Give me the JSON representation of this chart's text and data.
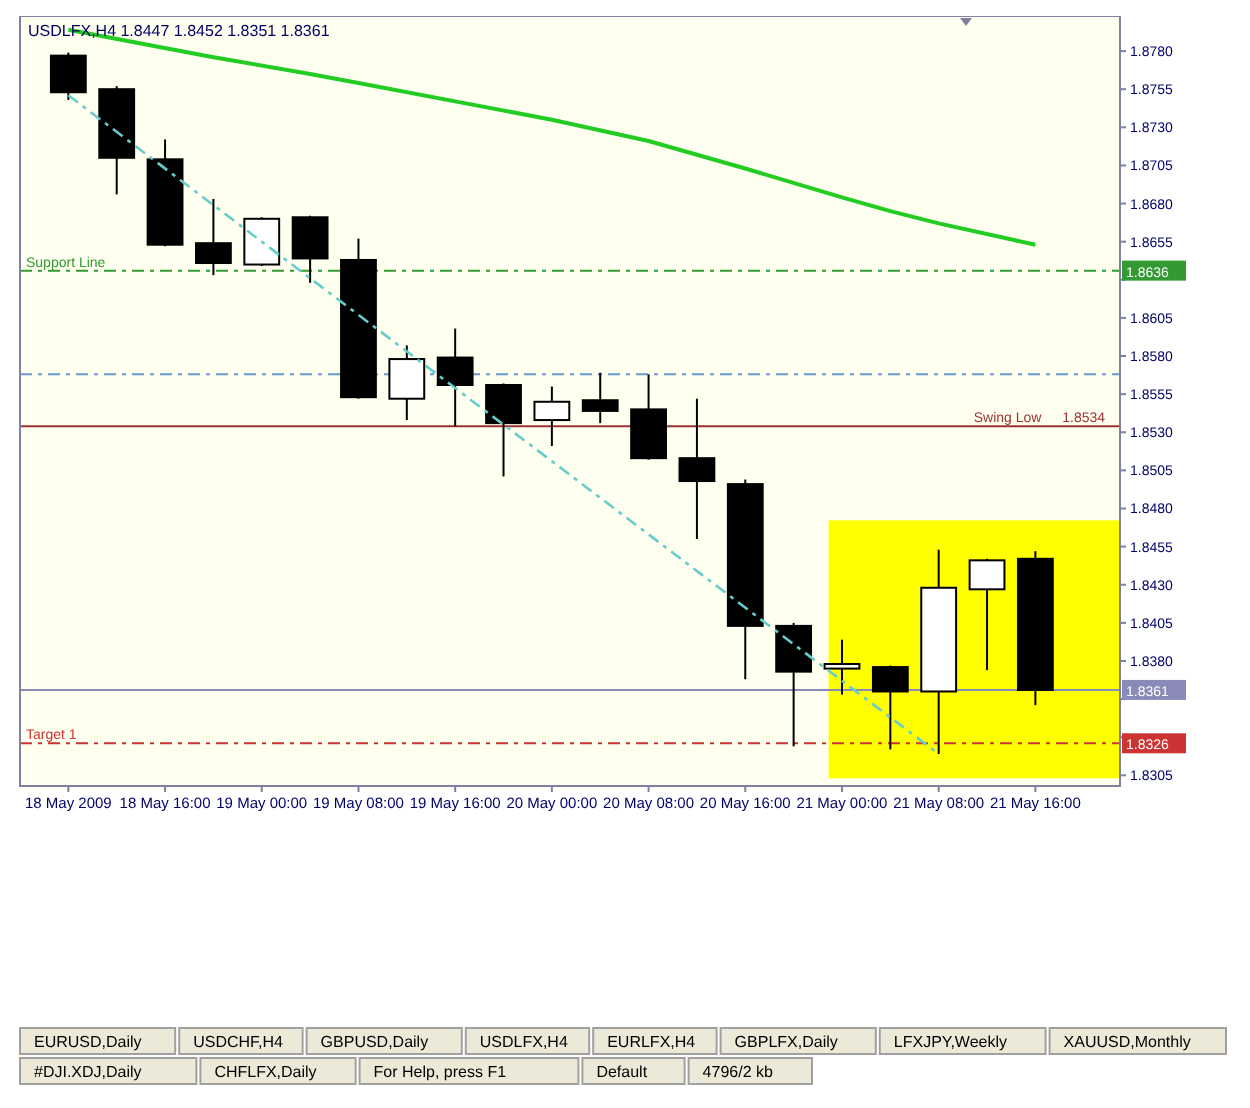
{
  "chart_data": {
    "type": "candlestick",
    "title": "USDLFX,H4 1.8447 1.8452 1.8351 1.8361",
    "x": [
      "2009-05-18T08:00",
      "2009-05-18T12:00",
      "2009-05-18T16:00",
      "2009-05-18T20:00",
      "2009-05-19T00:00",
      "2009-05-19T04:00",
      "2009-05-19T08:00",
      "2009-05-19T12:00",
      "2009-05-19T16:00",
      "2009-05-19T20:00",
      "2009-05-20T00:00",
      "2009-05-20T04:00",
      "2009-05-20T08:00",
      "2009-05-20T12:00",
      "2009-05-20T16:00",
      "2009-05-20T20:00",
      "2009-05-21T00:00",
      "2009-05-21T04:00",
      "2009-05-21T08:00",
      "2009-05-21T12:00",
      "2009-05-21T16:00"
    ],
    "ohlc": [
      [
        1.8777,
        1.8779,
        1.8748,
        1.8753
      ],
      [
        1.8755,
        1.8757,
        1.8686,
        1.871
      ],
      [
        1.8709,
        1.8722,
        1.8652,
        1.8653
      ],
      [
        1.8654,
        1.8683,
        1.8633,
        1.8641
      ],
      [
        1.864,
        1.8671,
        1.8639,
        1.867
      ],
      [
        1.8671,
        1.8672,
        1.8628,
        1.8644
      ],
      [
        1.8643,
        1.8657,
        1.8552,
        1.8553
      ],
      [
        1.8552,
        1.8587,
        1.8538,
        1.8578
      ],
      [
        1.8579,
        1.8598,
        1.8534,
        1.8561
      ],
      [
        1.8561,
        1.8562,
        1.8501,
        1.8536
      ],
      [
        1.8538,
        1.856,
        1.8521,
        1.855
      ],
      [
        1.8551,
        1.8569,
        1.8536,
        1.8544
      ],
      [
        1.8545,
        1.8568,
        1.8512,
        1.8513
      ],
      [
        1.8513,
        1.8552,
        1.846,
        1.8498
      ],
      [
        1.8496,
        1.8499,
        1.8368,
        1.8403
      ],
      [
        1.8403,
        1.8405,
        1.8324,
        1.8373
      ],
      [
        1.8375,
        1.8394,
        1.8358,
        1.8378
      ],
      [
        1.8376,
        1.8377,
        1.8322,
        1.836
      ],
      [
        1.836,
        1.8453,
        1.8319,
        1.8428
      ],
      [
        1.8427,
        1.8447,
        1.8374,
        1.8446
      ],
      [
        1.8447,
        1.8452,
        1.8351,
        1.8361
      ]
    ],
    "series": [
      {
        "type": "line",
        "color": "#22cc22",
        "line_style": "solid",
        "x": [
          "2009-05-18T08:00",
          "2009-05-18T20:00",
          "2009-05-19T04:00",
          "2009-05-19T08:00",
          "2009-05-19T16:00",
          "2009-05-20T00:00",
          "2009-05-20T08:00",
          "2009-05-20T16:00",
          "2009-05-21T00:00",
          "2009-05-21T04:00",
          "2009-05-21T08:00",
          "2009-05-21T16:00"
        ],
        "values": [
          1.8794,
          1.8776,
          1.8765,
          1.8759,
          1.8747,
          1.8735,
          1.8721,
          1.8703,
          1.8684,
          1.8675,
          1.8667,
          1.8653
        ]
      },
      {
        "type": "line",
        "color": "#66cccc",
        "line_style": "dashed",
        "x": [
          "2009-05-18T08:00",
          "2009-05-21T08:00"
        ],
        "values": [
          1.8751,
          1.8319
        ]
      }
    ],
    "xlim": [
      "2009-05-18T04:00",
      "2009-05-21T23:00"
    ],
    "xticks": [
      {
        "value": "2009-05-18T08:00",
        "label": "18 May 2009"
      },
      {
        "value": "2009-05-18T16:00",
        "label": "18 May 16:00"
      },
      {
        "value": "2009-05-19T00:00",
        "label": "19 May 00:00"
      },
      {
        "value": "2009-05-19T08:00",
        "label": "19 May 08:00"
      },
      {
        "value": "2009-05-19T16:00",
        "label": "19 May 16:00"
      },
      {
        "value": "2009-05-20T00:00",
        "label": "20 May 00:00"
      },
      {
        "value": "2009-05-20T08:00",
        "label": "20 May 08:00"
      },
      {
        "value": "2009-05-20T16:00",
        "label": "20 May 16:00"
      },
      {
        "value": "2009-05-21T00:00",
        "label": "21 May 00:00"
      },
      {
        "value": "2009-05-21T08:00",
        "label": "21 May 08:00"
      },
      {
        "value": "2009-05-21T16:00",
        "label": "21 May 16:00"
      }
    ],
    "ylim": [
      1.8298,
      1.8803
    ],
    "yticks": [
      {
        "value": 1.878,
        "label": "1.8780"
      },
      {
        "value": 1.8755,
        "label": "1.8755"
      },
      {
        "value": 1.873,
        "label": "1.8730"
      },
      {
        "value": 1.8705,
        "label": "1.8705"
      },
      {
        "value": 1.868,
        "label": "1.8680"
      },
      {
        "value": 1.8655,
        "label": "1.8655"
      },
      {
        "value": 1.863,
        "label": null
      },
      {
        "value": 1.8605,
        "label": "1.8605"
      },
      {
        "value": 1.858,
        "label": "1.8580"
      },
      {
        "value": 1.8555,
        "label": "1.8555"
      },
      {
        "value": 1.853,
        "label": "1.8530"
      },
      {
        "value": 1.8505,
        "label": "1.8505"
      },
      {
        "value": 1.848,
        "label": "1.8480"
      },
      {
        "value": 1.8455,
        "label": "1.8455"
      },
      {
        "value": 1.843,
        "label": "1.8430"
      },
      {
        "value": 1.8405,
        "label": "1.8405"
      },
      {
        "value": 1.838,
        "label": "1.8380"
      },
      {
        "value": 1.8355,
        "label": null
      },
      {
        "value": 1.833,
        "label": null
      },
      {
        "value": 1.8305,
        "label": "1.8305"
      }
    ],
    "ref_lines": [
      {
        "axis": "y",
        "value": 1.8636,
        "label": "Support Line",
        "color": "#339933",
        "line_style": "dashed"
      },
      {
        "axis": "y",
        "value": 1.8568,
        "color": "#6699cc",
        "line_style": "dashed"
      },
      {
        "axis": "y",
        "value": 1.8534,
        "label": "Swing Low",
        "color": "#993333",
        "line_style": "solid"
      },
      {
        "axis": "y",
        "value": 1.8361,
        "color": "#8a8ab8",
        "line_style": "solid"
      },
      {
        "axis": "y",
        "value": 1.8326,
        "label": "Target 1",
        "color": "#cc3333",
        "line_style": "dashed"
      }
    ],
    "annotations": [
      {
        "text": "1.8636",
        "x": "2009-05-21T23:00",
        "y": 1.8636
      },
      {
        "text": "1.8534",
        "x": "2009-05-21T20:00",
        "y": 1.8534
      },
      {
        "text": "1.8361",
        "x": "2009-05-21T23:00",
        "y": 1.8361
      },
      {
        "text": "1.8326",
        "x": "2009-05-21T23:00",
        "y": 1.8326
      },
      "EURUSD,Daily",
      "USDCHF,H4",
      "GBPUSD,Daily",
      "USDLFX,H4",
      "EURLFX,H4",
      "GBPLFX,Daily",
      "LFXJPY,Weekly",
      "XAUUSD,Monthly",
      "#DJI.XDJ,Daily",
      "CHFLFX,Daily",
      "For Help, press F1",
      "Default",
      "4796/2 kb"
    ]
  }
}
